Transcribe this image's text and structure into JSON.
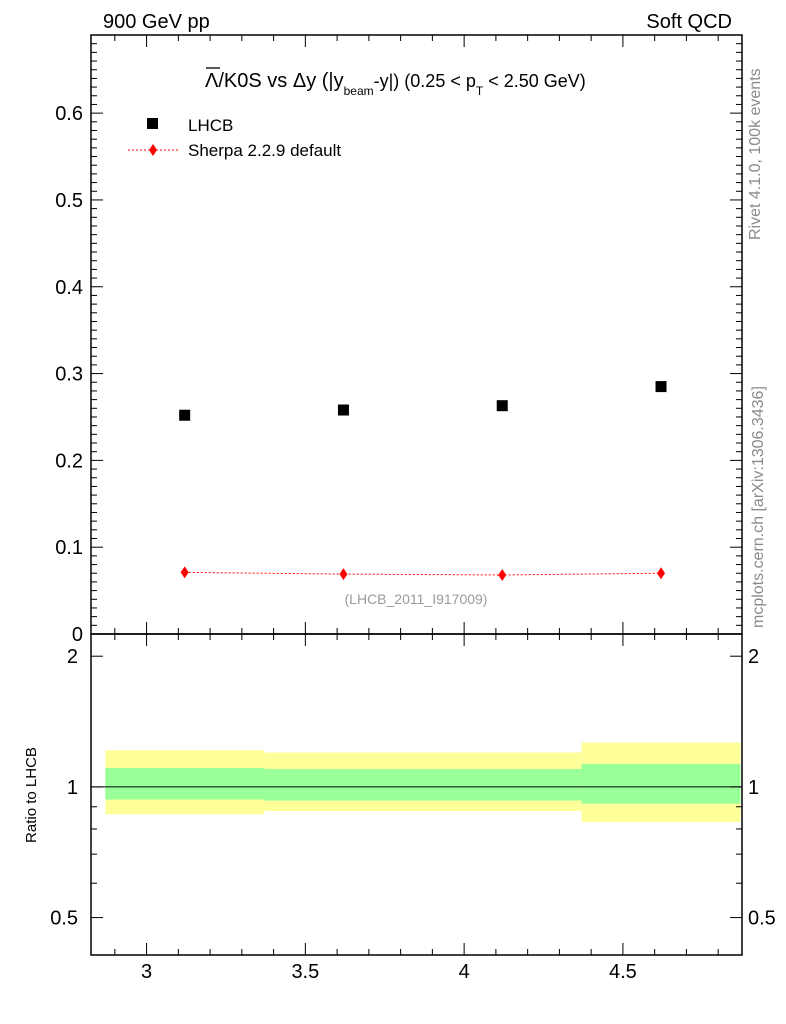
{
  "header": {
    "left": "900 GeV pp",
    "right": "Soft QCD"
  },
  "side_labels": {
    "rivet": "Rivet 4.1.0,  100k events",
    "mcplots": "mcplots.cern.ch [arXiv:1306.3436]"
  },
  "chart_data": {
    "type": "scatter",
    "title": {
      "overline": "Λ",
      "part1": "/K0S vs Δy (|y",
      "sub1": "beam",
      "part2": "-y|) (0.25 < p",
      "sub2": "T",
      "part3": " < 2.50 GeV)"
    },
    "analysis_label": "(LHCB_2011_I917009)",
    "x": [
      3.12,
      3.62,
      4.12,
      4.62
    ],
    "xlim": [
      2.825,
      4.875
    ],
    "x_ticks": [
      "3",
      "3.5",
      "4",
      "4.5"
    ],
    "x_tick_values": [
      3,
      3.5,
      4,
      4.5
    ],
    "main": {
      "ylim": [
        0,
        0.69
      ],
      "y_ticks": [
        "0",
        "0.1",
        "0.2",
        "0.3",
        "0.4",
        "0.5",
        "0.6"
      ],
      "y_tick_values": [
        0,
        0.1,
        0.2,
        0.3,
        0.4,
        0.5,
        0.6
      ],
      "series": [
        {
          "name": "LHCB",
          "marker": "square",
          "color": "#000000",
          "values": [
            0.252,
            0.258,
            0.263,
            0.285
          ]
        },
        {
          "name": "Sherpa 2.2.9 default",
          "marker": "diamond",
          "color": "#ff0000",
          "values": [
            0.071,
            0.069,
            0.068,
            0.07
          ]
        }
      ]
    },
    "ratio": {
      "ylabel": "Ratio to LHCB",
      "ylim": [
        0.41,
        2.25
      ],
      "y_ticks": [
        "0.5",
        "1",
        "2"
      ],
      "y_tick_values": [
        0.5,
        1,
        2
      ],
      "reference": 1,
      "bins": [
        {
          "lo": 2.87,
          "hi": 3.37,
          "inner": [
            0.935,
            1.105
          ],
          "outer": [
            0.865,
            1.215
          ]
        },
        {
          "lo": 3.37,
          "hi": 4.37,
          "inner": [
            0.93,
            1.1
          ],
          "outer": [
            0.88,
            1.2
          ]
        },
        {
          "lo": 4.37,
          "hi": 4.87,
          "inner": [
            0.915,
            1.13
          ],
          "outer": [
            0.83,
            1.265
          ]
        }
      ],
      "colors": {
        "inner": "#99ff99",
        "outer": "#ffff99"
      }
    }
  }
}
